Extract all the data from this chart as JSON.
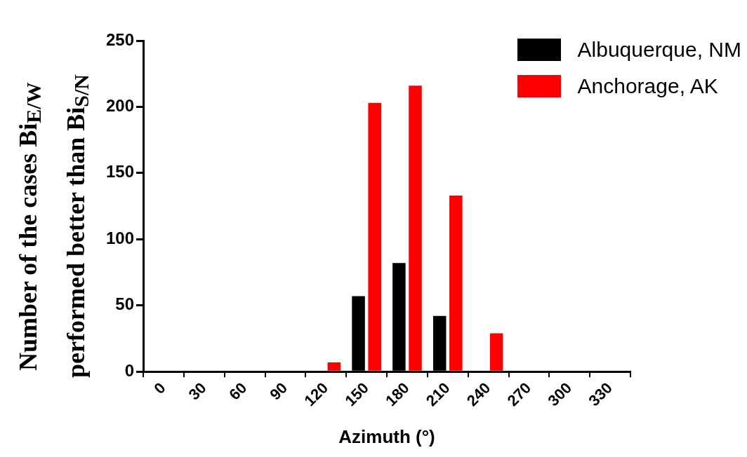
{
  "chart_data": {
    "type": "bar",
    "xlabel": "Azimuth (°)",
    "ylabel": "Number of the cases Bi$_{E/W}$ performed better than Bi$_{S/N}$",
    "categories": [
      "0",
      "30",
      "60",
      "90",
      "120",
      "150",
      "180",
      "210",
      "240",
      "270",
      "300",
      "330"
    ],
    "series": [
      {
        "name": "Albuquerque, NM",
        "color": "#000000",
        "values": [
          0,
          0,
          0,
          0,
          0,
          57,
          82,
          42,
          0,
          0,
          0,
          0
        ]
      },
      {
        "name": "Anchorage, AK",
        "color": "#ff0000",
        "values": [
          0,
          0,
          0,
          0,
          7,
          203,
          216,
          133,
          29,
          0,
          0,
          0
        ]
      }
    ],
    "ylim": [
      0,
      250
    ],
    "yticks": [
      0,
      50,
      100,
      150,
      200,
      250
    ],
    "grid": false,
    "legend": "top right"
  }
}
